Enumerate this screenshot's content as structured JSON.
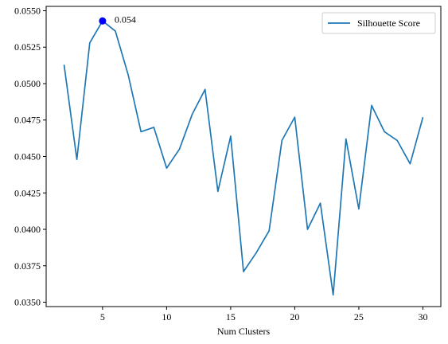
{
  "chart_data": {
    "type": "line",
    "title": "",
    "xlabel": "Num Clusters",
    "ylabel": "",
    "xlim": [
      0.6,
      31.4
    ],
    "ylim": [
      0.0347,
      0.0553
    ],
    "xticks": [
      5,
      10,
      15,
      20,
      25,
      30
    ],
    "yticks": [
      0.035,
      0.0375,
      0.04,
      0.0425,
      0.045,
      0.0475,
      0.05,
      0.0525,
      0.055
    ],
    "xtick_labels": [
      "5",
      "10",
      "15",
      "20",
      "25",
      "30"
    ],
    "ytick_labels": [
      "0.0350",
      "0.0375",
      "0.0400",
      "0.0425",
      "0.0450",
      "0.0475",
      "0.0500",
      "0.0525",
      "0.0550"
    ],
    "grid": false,
    "legend_position": "top-right",
    "series": [
      {
        "name": "Silhouette Score",
        "color": "#1f77b4",
        "x": [
          2,
          3,
          4,
          5,
          6,
          7,
          8,
          9,
          10,
          11,
          12,
          13,
          14,
          15,
          16,
          17,
          18,
          19,
          20,
          21,
          22,
          23,
          24,
          25,
          26,
          27,
          28,
          29,
          30
        ],
        "y": [
          0.0513,
          0.0448,
          0.0528,
          0.0543,
          0.0536,
          0.0506,
          0.0467,
          0.047,
          0.0442,
          0.0455,
          0.0479,
          0.0496,
          0.0426,
          0.0464,
          0.0371,
          0.0384,
          0.0399,
          0.0461,
          0.0477,
          0.04,
          0.0418,
          0.0355,
          0.0462,
          0.0414,
          0.0485,
          0.0467,
          0.0461,
          0.0445,
          0.0477
        ]
      }
    ],
    "highlight": {
      "x": 5,
      "y": 0.0543,
      "color": "#0000ff",
      "label": "0.054"
    }
  }
}
